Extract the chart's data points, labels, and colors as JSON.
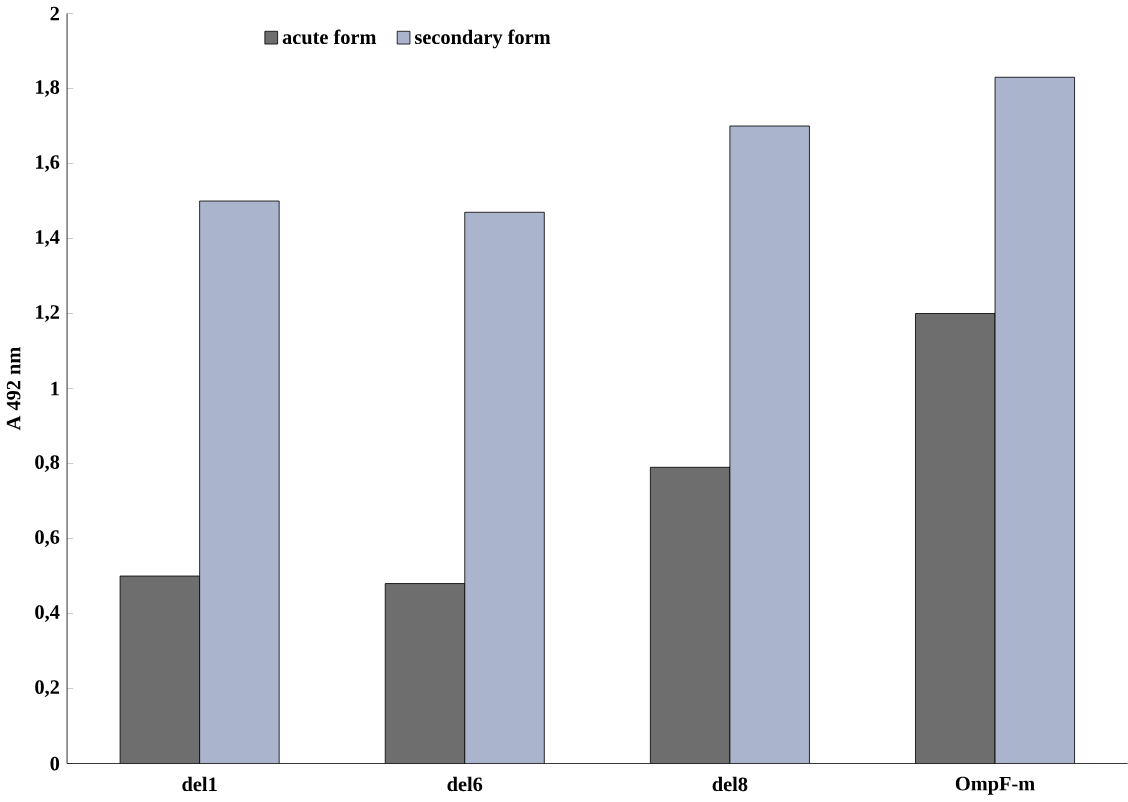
{
  "chart_data": {
    "type": "bar",
    "ylabel": "A 492 nm",
    "categories": [
      "del1",
      "del6",
      "del8",
      "OmpF-m"
    ],
    "series": [
      {
        "name": "acute form",
        "color": "#6e6e6e",
        "values": [
          0.5,
          0.48,
          0.79,
          1.2
        ]
      },
      {
        "name": "secondary form",
        "color": "#aab4cc",
        "values": [
          1.5,
          1.47,
          1.7,
          1.83
        ]
      }
    ],
    "ylim": [
      0,
      2
    ],
    "yticks": [
      0,
      {
        "value": 0.2,
        "label": "0,2"
      },
      {
        "value": 0.4,
        "label": "0,4"
      },
      {
        "value": 0.6,
        "label": "0,6"
      },
      {
        "value": 0.8,
        "label": "0,8"
      },
      1,
      {
        "value": 1.2,
        "label": "1,2"
      },
      {
        "value": 1.4,
        "label": "1,4"
      },
      {
        "value": 1.6,
        "label": "1,6"
      },
      {
        "value": 1.8,
        "label": "1,8"
      },
      2
    ],
    "legend": "top",
    "grid": false
  }
}
